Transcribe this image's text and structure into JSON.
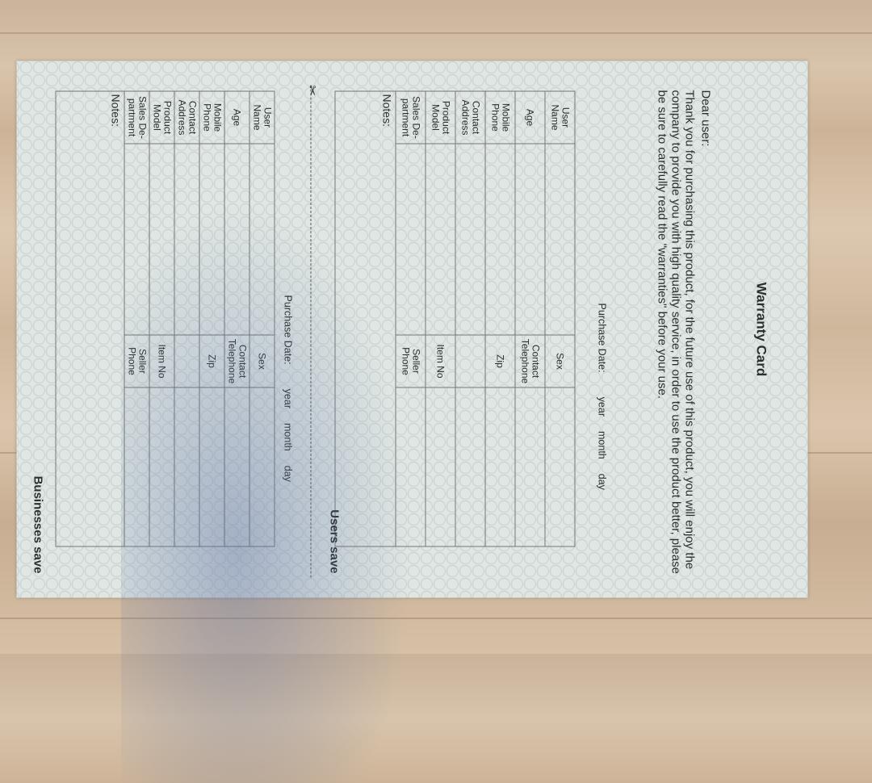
{
  "card": {
    "title": "Warranty Card",
    "greeting": "Dear user:",
    "message": "Thank you for purchasing this product, for the future use of this product, you will enjoy the company to provide you with high quality service, in order to use the product better, please be sure to carefully read the \"warranties\" before your use.",
    "purchase_date": {
      "label": "Purchase Date:",
      "year": "year",
      "month": "month",
      "day": "day"
    },
    "rows": [
      {
        "label": "User Name",
        "label2": "Sex"
      },
      {
        "label": "Age",
        "label2": "Contact Telephone"
      },
      {
        "label": "Mobile Phone",
        "label2": "Zip"
      },
      {
        "label": "Contact Address",
        "label2": ""
      },
      {
        "label": "Product Model",
        "label2": "Item No"
      },
      {
        "label": "Sales De-partment",
        "label2": "Seller Phone"
      }
    ],
    "notes_label": "Notes:",
    "users_save": "Users save",
    "businesses_save": "Businesses save",
    "scissors_icon": "scissors-icon"
  }
}
